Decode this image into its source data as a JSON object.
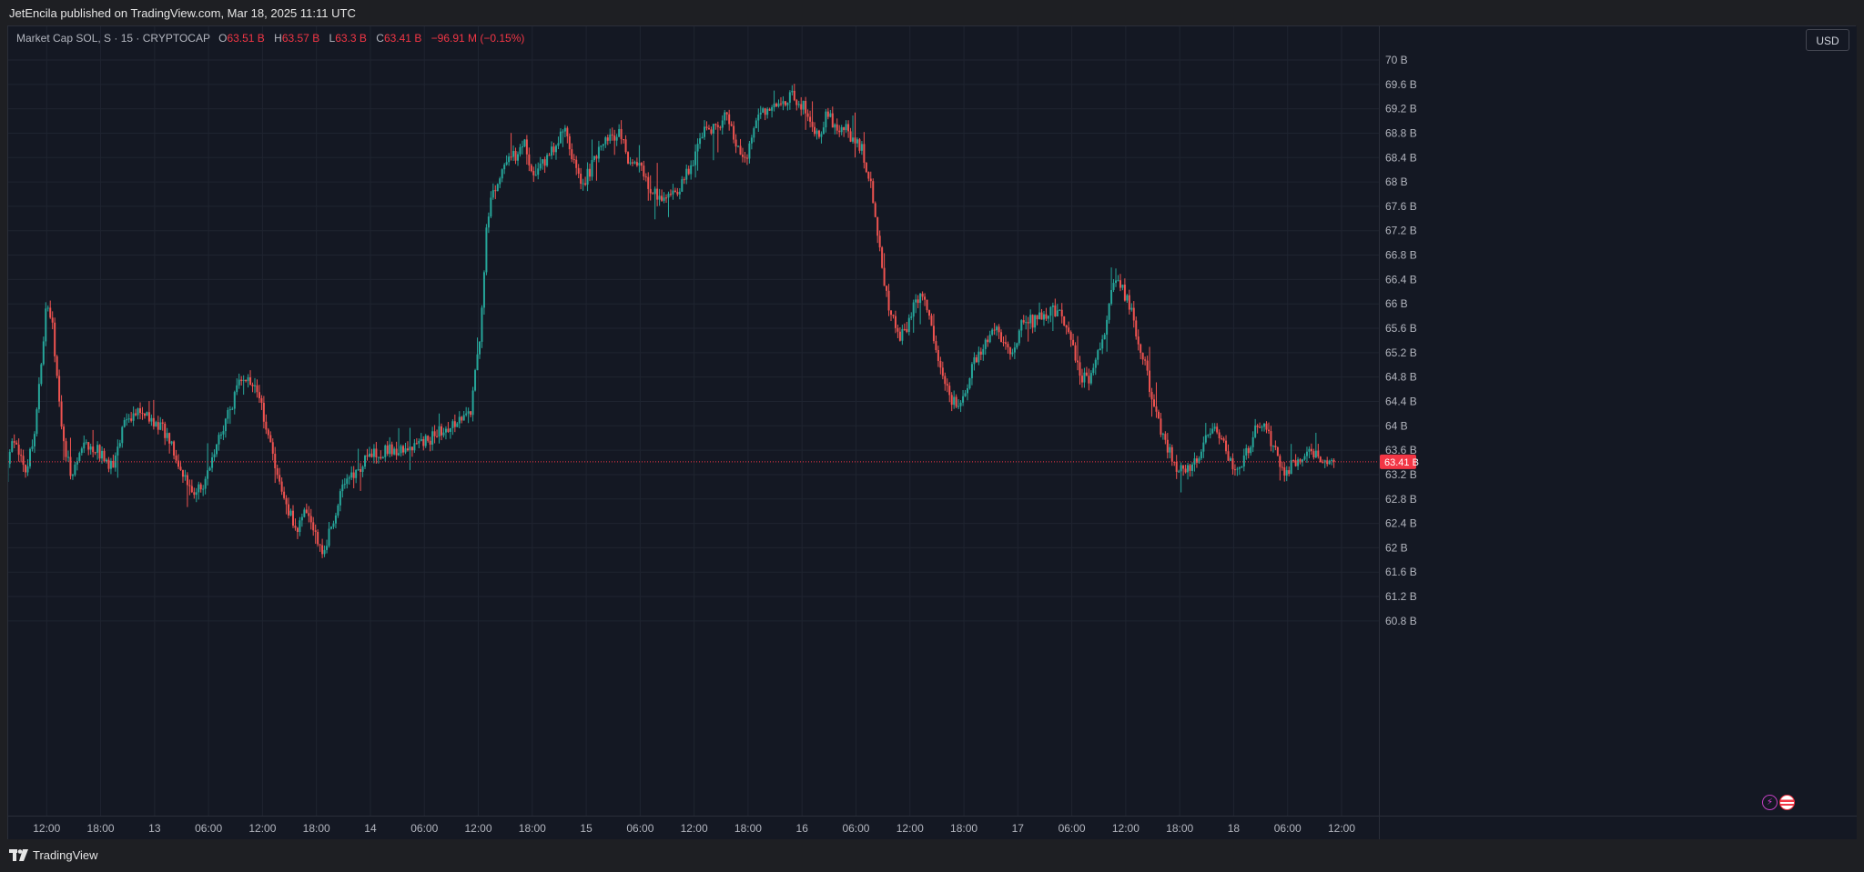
{
  "header": {
    "published_text": "JetEncila published on TradingView.com, Mar 18, 2025 11:11 UTC"
  },
  "legend": {
    "symbol": "Market Cap SOL, S · 15 · CRYPTOCAP",
    "open_label": "O",
    "open": "63.51 B",
    "high_label": "H",
    "high": "63.57 B",
    "low_label": "L",
    "low": "63.3 B",
    "close_label": "C",
    "close": "63.41 B",
    "change": "−96.91 M (−0.15%)"
  },
  "currency_button": "USD",
  "footer": {
    "brand": "TradingView"
  },
  "colors": {
    "up": "#26a69a",
    "down": "#ef5350",
    "background": "#141823",
    "grid": "#1f2430",
    "price_tag": "#f23645"
  },
  "icons": [
    "lightning-icon",
    "us-flag-icon"
  ],
  "chart_data": {
    "type": "candlestick",
    "interval": "15",
    "y_unit": "B",
    "ylim": [
      60.7,
      71.1
    ],
    "y_ticks": [
      "70 B",
      "69.6 B",
      "69.2 B",
      "68.8 B",
      "68.4 B",
      "68 B",
      "67.6 B",
      "67.2 B",
      "66.8 B",
      "66.4 B",
      "66 B",
      "65.6 B",
      "65.2 B",
      "64.8 B",
      "64.4 B",
      "64 B",
      "63.6 B",
      "63.2 B",
      "62.8 B",
      "62.4 B",
      "62 B",
      "61.6 B",
      "61.2 B",
      "60.8 B"
    ],
    "y_tick_values": [
      70,
      69.6,
      69.2,
      68.8,
      68.4,
      68,
      67.6,
      67.2,
      66.8,
      66.4,
      66,
      65.6,
      65.2,
      64.8,
      64.4,
      64,
      63.6,
      63.2,
      62.8,
      62.4,
      62,
      61.6,
      61.2,
      60.8
    ],
    "x_ticks": [
      "06:00",
      "12:00",
      "18:00",
      "13",
      "06:00",
      "12:00",
      "18:00",
      "14",
      "06:00",
      "12:00",
      "18:00",
      "15",
      "06:00",
      "12:00",
      "18:00",
      "16",
      "06:00",
      "12:00",
      "18:00",
      "17",
      "06:00",
      "12:00",
      "18:00",
      "18",
      "06:00",
      "12:00"
    ],
    "x_tick_hours": [
      6,
      12,
      18,
      24,
      30,
      36,
      42,
      48,
      54,
      60,
      66,
      72,
      78,
      84,
      90,
      96,
      102,
      108,
      114,
      120,
      126,
      132,
      138,
      144,
      150,
      156
    ],
    "start_hour": 5.9,
    "end_hour": 155.2,
    "bars_per_hour": 4,
    "current_price": 63.41,
    "current_price_label": "63.41 B",
    "path_anchors": [
      [
        5.9,
        62.3
      ],
      [
        7,
        62.6
      ],
      [
        8.5,
        63.8
      ],
      [
        10,
        63.2
      ],
      [
        11,
        64
      ],
      [
        12.3,
        66.1
      ],
      [
        13,
        65.5
      ],
      [
        14,
        63.8
      ],
      [
        15,
        63.2
      ],
      [
        16.5,
        63.7
      ],
      [
        18,
        63.6
      ],
      [
        19.5,
        63.3
      ],
      [
        21,
        64.1
      ],
      [
        22.5,
        64.3
      ],
      [
        24,
        64.1
      ],
      [
        26,
        63.8
      ],
      [
        27.3,
        63.2
      ],
      [
        28.5,
        62.9
      ],
      [
        30,
        63.1
      ],
      [
        31.5,
        63.8
      ],
      [
        34,
        64.8
      ],
      [
        35.5,
        64.6
      ],
      [
        36.5,
        64.1
      ],
      [
        38,
        63.1
      ],
      [
        39,
        62.7
      ],
      [
        40,
        62.2
      ],
      [
        41,
        62.6
      ],
      [
        42,
        62.3
      ],
      [
        43,
        61.9
      ],
      [
        44,
        62.4
      ],
      [
        45,
        62.9
      ],
      [
        46,
        63.1
      ],
      [
        47,
        63.3
      ],
      [
        48,
        63.5
      ],
      [
        50,
        63.6
      ],
      [
        52,
        63.6
      ],
      [
        54,
        63.7
      ],
      [
        56,
        63.9
      ],
      [
        58,
        64.1
      ],
      [
        59.5,
        64.3
      ],
      [
        60.5,
        65.6
      ],
      [
        61.3,
        67.5
      ],
      [
        62,
        67.8
      ],
      [
        63,
        68.3
      ],
      [
        64,
        68.4
      ],
      [
        65.5,
        68.6
      ],
      [
        66.5,
        68.0
      ],
      [
        67.5,
        68.3
      ],
      [
        69,
        68.6
      ],
      [
        70,
        68.9
      ],
      [
        71,
        68.2
      ],
      [
        72,
        68.0
      ],
      [
        73,
        68.3
      ],
      [
        74.5,
        68.7
      ],
      [
        76,
        68.8
      ],
      [
        77,
        68.3
      ],
      [
        78,
        68.3
      ],
      [
        79.5,
        67.8
      ],
      [
        81,
        67.8
      ],
      [
        82.5,
        67.9
      ],
      [
        84,
        68.3
      ],
      [
        85,
        68.8
      ],
      [
        86.5,
        68.9
      ],
      [
        88,
        69.1
      ],
      [
        89,
        68.6
      ],
      [
        90,
        68.4
      ],
      [
        91,
        68.9
      ],
      [
        92,
        69.2
      ],
      [
        93.5,
        69.3
      ],
      [
        95,
        69.4
      ],
      [
        96,
        69.3
      ],
      [
        97,
        69.1
      ],
      [
        98,
        68.7
      ],
      [
        99,
        69.1
      ],
      [
        100,
        68.9
      ],
      [
        101,
        68.9
      ],
      [
        102,
        68.7
      ],
      [
        103,
        68.5
      ],
      [
        104,
        67.9
      ],
      [
        105,
        66.7
      ],
      [
        106,
        65.9
      ],
      [
        107,
        65.4
      ],
      [
        108,
        65.6
      ],
      [
        109,
        66.1
      ],
      [
        110,
        66.0
      ],
      [
        111,
        65.4
      ],
      [
        112,
        64.8
      ],
      [
        113,
        64.4
      ],
      [
        114,
        64.3
      ],
      [
        115,
        64.9
      ],
      [
        116,
        65.2
      ],
      [
        117,
        65.4
      ],
      [
        118,
        65.6
      ],
      [
        119,
        65.2
      ],
      [
        120,
        65.3
      ],
      [
        121,
        65.8
      ],
      [
        122,
        65.7
      ],
      [
        123,
        65.8
      ],
      [
        124,
        65.9
      ],
      [
        125,
        65.8
      ],
      [
        126,
        65.6
      ],
      [
        127,
        64.9
      ],
      [
        128,
        64.7
      ],
      [
        129,
        65.2
      ],
      [
        130,
        65.6
      ],
      [
        131,
        66.5
      ],
      [
        132,
        66.2
      ],
      [
        133,
        65.8
      ],
      [
        134,
        65.2
      ],
      [
        135,
        64.6
      ],
      [
        136,
        64.0
      ],
      [
        137,
        63.6
      ],
      [
        138,
        63.3
      ],
      [
        139,
        63.3
      ],
      [
        140,
        63.4
      ],
      [
        141,
        63.8
      ],
      [
        142,
        64.0
      ],
      [
        143,
        63.7
      ],
      [
        144.5,
        63.3
      ],
      [
        146,
        63.6
      ],
      [
        147,
        64.1
      ],
      [
        148,
        63.9
      ],
      [
        149,
        63.5
      ],
      [
        150,
        63.2
      ],
      [
        151,
        63.4
      ],
      [
        152,
        63.5
      ],
      [
        153,
        63.6
      ],
      [
        154,
        63.5
      ],
      [
        155.2,
        63.41
      ]
    ]
  }
}
